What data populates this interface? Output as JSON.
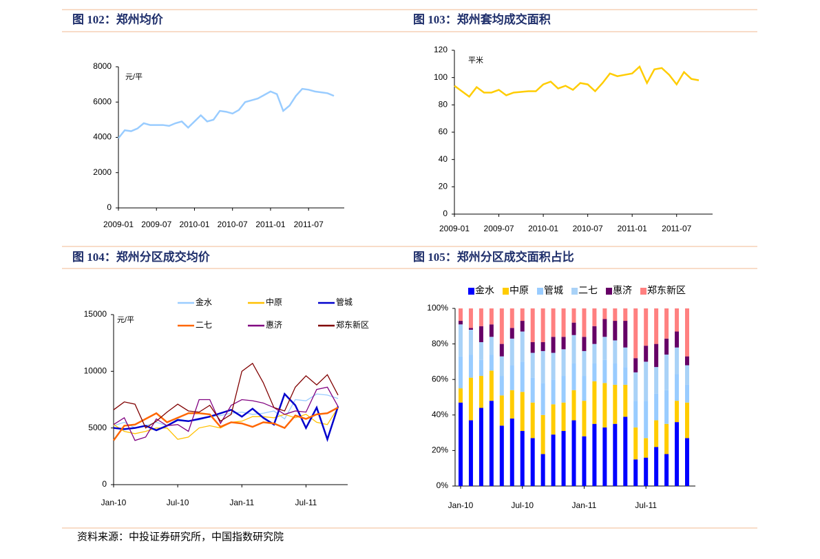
{
  "chart_data": [
    {
      "type": "line",
      "title": "图 102：郑州均价",
      "y_unit": "元/平",
      "categories": [
        "2009-01",
        null,
        null,
        null,
        null,
        null,
        "2009-07",
        null,
        null,
        null,
        null,
        null,
        "2010-01",
        null,
        null,
        null,
        null,
        null,
        "2010-07",
        null,
        null,
        null,
        null,
        null,
        "2011-01",
        null,
        null,
        null,
        null,
        null,
        "2011-07",
        null,
        null,
        null,
        null
      ],
      "series": [
        {
          "name": null,
          "color": "#99ccff",
          "values": [
            3950,
            4400,
            4350,
            4500,
            4800,
            4700,
            4700,
            4700,
            4650,
            4800,
            4900,
            4550,
            4900,
            5250,
            4900,
            5000,
            5500,
            5450,
            5350,
            5550,
            6000,
            6100,
            6200,
            6400,
            6600,
            6450,
            5500,
            5800,
            6350,
            6750,
            6700,
            6600,
            6550,
            6500,
            6350
          ]
        }
      ],
      "ylim": [
        0,
        8000
      ],
      "yticks": [
        0,
        2000,
        4000,
        6000,
        8000
      ]
    },
    {
      "type": "line",
      "title": "图 103：郑州套均成交面积",
      "y_unit": "平米",
      "categories": [
        "2009-01",
        null,
        null,
        null,
        null,
        null,
        "2009-07",
        null,
        null,
        null,
        null,
        null,
        "2010-01",
        null,
        null,
        null,
        null,
        null,
        "2010-07",
        null,
        null,
        null,
        null,
        null,
        "2011-01",
        null,
        null,
        null,
        null,
        null,
        "2011-07",
        null,
        null,
        null
      ],
      "series": [
        {
          "name": null,
          "color": "#ffcc00",
          "values": [
            94,
            90,
            86,
            93,
            89,
            89,
            91,
            87,
            89,
            89.5,
            90,
            90,
            95,
            97,
            92,
            94,
            91,
            96,
            95,
            90,
            96,
            103,
            101,
            102,
            103,
            108,
            96,
            106,
            107,
            102,
            95,
            104,
            99,
            98
          ]
        }
      ],
      "ylim": [
        0,
        120
      ],
      "yticks": [
        0,
        20,
        40,
        60,
        80,
        100,
        120
      ]
    },
    {
      "type": "line",
      "title": "图 104：郑州分区成交均价",
      "y_unit": "元/平",
      "categories": [
        "Jan-10",
        null,
        null,
        null,
        null,
        null,
        "Jul-10",
        null,
        null,
        null,
        null,
        null,
        "Jan-11",
        null,
        null,
        null,
        null,
        null,
        "Jul-11",
        null,
        null,
        null
      ],
      "series": [
        {
          "name": "金水",
          "color": "#99ccff",
          "values": [
            5200,
            5500,
            5000,
            5200,
            5500,
            5200,
            5800,
            5600,
            5700,
            6000,
            6100,
            6300,
            6400,
            6200,
            6300,
            6500,
            5800,
            7500,
            7400,
            8000,
            7900,
            7600
          ]
        },
        {
          "name": "中原",
          "color": "#ffc000",
          "values": [
            5300,
            4700,
            4500,
            4700,
            5000,
            5000,
            4000,
            4200,
            5000,
            5200,
            5000,
            5500,
            5600,
            6000,
            6000,
            5900,
            6200,
            5900,
            6200,
            5500,
            5300,
            6800
          ]
        },
        {
          "name": "管城",
          "color": "#0000cc",
          "values": [
            5000,
            4900,
            5000,
            5200,
            4800,
            5200,
            5700,
            5600,
            5800,
            6000,
            6300,
            6600,
            6000,
            6700,
            5900,
            5300,
            8000,
            7000,
            5000,
            6800,
            4000,
            6900
          ]
        },
        {
          "name": "二七",
          "color": "#ff6600",
          "values": [
            3900,
            5200,
            5300,
            5800,
            6300,
            5500,
            5900,
            6300,
            6300,
            6200,
            5100,
            5500,
            5400,
            5100,
            5500,
            5400,
            5000,
            6100,
            5800,
            6200,
            6300,
            6800
          ]
        },
        {
          "name": "惠济",
          "color": "#800080",
          "values": [
            5300,
            5900,
            3900,
            4200,
            5800,
            5200,
            5300,
            4700,
            7500,
            7500,
            5400,
            7000,
            7500,
            7400,
            7200,
            6800,
            6200,
            6500,
            6400,
            8400,
            8600,
            6900
          ]
        },
        {
          "name": "郑东新区",
          "color": "#800000",
          "values": [
            6600,
            7300,
            7100,
            5000,
            5600,
            6400,
            7100,
            6500,
            6400,
            7000,
            5600,
            6200,
            10000,
            10700,
            9000,
            6800,
            6500,
            8600,
            9600,
            8800,
            9700,
            7900
          ]
        }
      ],
      "ylim": [
        0,
        15000
      ],
      "yticks": [
        0,
        5000,
        10000,
        15000
      ]
    },
    {
      "type": "stacked_bar",
      "title": "图 105：郑州分区成交面积占比",
      "categories": [
        "Jan-10",
        null,
        null,
        null,
        null,
        null,
        "Jul-10",
        null,
        null,
        null,
        null,
        null,
        "Jan-11",
        null,
        null,
        null,
        null,
        null,
        "Jul-11",
        null,
        null,
        null,
        null
      ],
      "series": [
        {
          "name": "金水",
          "color": "#0000ff",
          "values": [
            47,
            37,
            44,
            48,
            34,
            38,
            31,
            27,
            18,
            29,
            31,
            37,
            28,
            35,
            33,
            35,
            39,
            15,
            16,
            22,
            18,
            36,
            27
          ]
        },
        {
          "name": "中原",
          "color": "#ffcc00",
          "values": [
            8,
            24,
            18,
            17,
            17,
            16,
            22,
            20,
            22,
            17,
            16,
            17,
            20,
            24,
            25,
            22,
            18,
            18,
            11,
            15,
            17,
            12,
            20
          ]
        },
        {
          "name": "管城",
          "color": "#99ccff",
          "values": [
            18,
            13,
            9,
            9,
            11,
            14,
            17,
            14,
            18,
            14,
            15,
            15,
            14,
            10,
            13,
            12,
            10,
            15,
            21,
            15,
            19,
            15,
            10
          ]
        },
        {
          "name": "二七",
          "color": "#a9d2f7",
          "values": [
            18,
            14,
            10,
            10,
            11,
            15,
            17,
            14,
            18,
            15,
            15,
            16,
            14,
            11,
            13,
            13,
            11,
            16,
            22,
            15,
            20,
            15,
            11
          ]
        },
        {
          "name": "惠济",
          "color": "#660066",
          "values": [
            2,
            1,
            9,
            7,
            7,
            6,
            6,
            6,
            5,
            9,
            7,
            7,
            8,
            10,
            10,
            11,
            15,
            8,
            9,
            13,
            9,
            9,
            5
          ]
        },
        {
          "name": "郑东新区",
          "color": "#ff8080",
          "values": [
            7,
            11,
            10,
            9,
            20,
            11,
            7,
            19,
            19,
            16,
            16,
            8,
            16,
            10,
            6,
            7,
            7,
            28,
            21,
            20,
            17,
            13,
            27
          ]
        }
      ],
      "ylim": [
        0,
        100
      ],
      "yticks": [
        {
          "value": 0,
          "label": "0%"
        },
        {
          "value": 20,
          "label": "20%"
        },
        {
          "value": 40,
          "label": "40%"
        },
        {
          "value": 60,
          "label": "60%"
        },
        {
          "value": 80,
          "label": "80%"
        },
        {
          "value": 100,
          "label": "100%"
        }
      ]
    }
  ],
  "source": "资料来源：中投证券研究所，中国指数研究院"
}
